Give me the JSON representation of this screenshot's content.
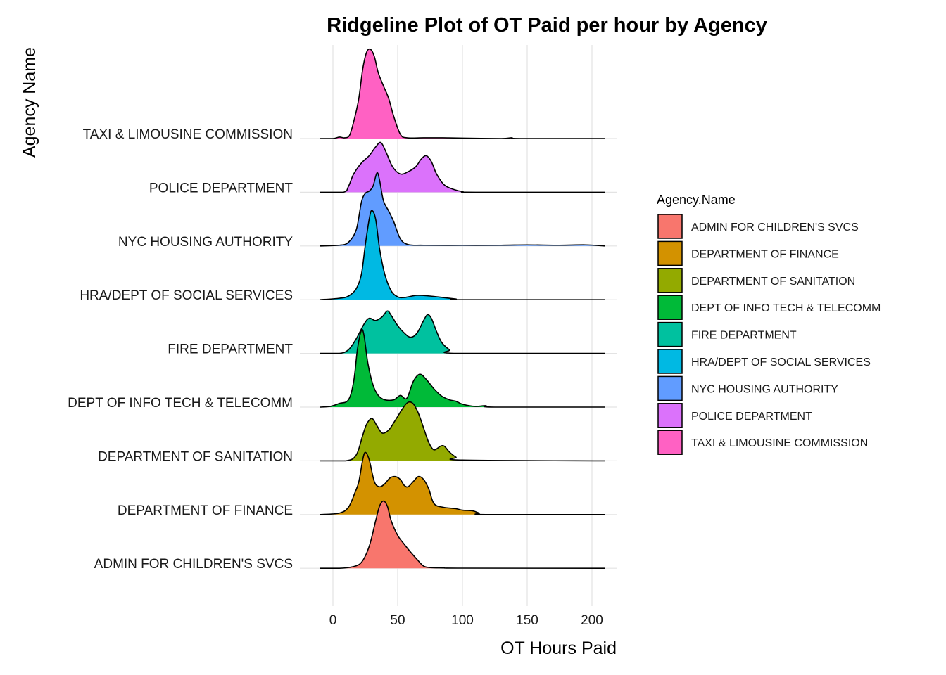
{
  "chart_data": {
    "type": "ridgeline",
    "title": "Ridgeline Plot of OT Paid per hour by Agency",
    "xlabel": "OT Hours Paid",
    "ylabel": "Agency Name",
    "xlim": [
      -10,
      210
    ],
    "xticks": [
      {
        "value": 0,
        "label": "0"
      },
      {
        "value": 50,
        "label": "50"
      },
      {
        "value": 100,
        "label": "100"
      },
      {
        "value": 150,
        "label": "150"
      },
      {
        "value": 200,
        "label": "200"
      }
    ],
    "grid": true,
    "legend": {
      "title": "Agency.Name",
      "position": "right"
    },
    "series": [
      {
        "name": "ADMIN FOR CHILDREN'S SVCS",
        "color": "#F8766D",
        "density": [
          [
            -10,
            0
          ],
          [
            5,
            0
          ],
          [
            15,
            0.02
          ],
          [
            22,
            0.08
          ],
          [
            28,
            0.3
          ],
          [
            33,
            0.65
          ],
          [
            36,
            0.85
          ],
          [
            39,
            0.92
          ],
          [
            42,
            0.85
          ],
          [
            45,
            0.65
          ],
          [
            50,
            0.45
          ],
          [
            55,
            0.33
          ],
          [
            60,
            0.22
          ],
          [
            65,
            0.12
          ],
          [
            70,
            0.03
          ],
          [
            75,
            0.01
          ],
          [
            85,
            0.005
          ],
          [
            100,
            0.002
          ],
          [
            210,
            0
          ]
        ]
      },
      {
        "name": "DEPARTMENT OF FINANCE",
        "color": "#D39200",
        "density": [
          [
            -10,
            0
          ],
          [
            5,
            0.02
          ],
          [
            12,
            0.1
          ],
          [
            17,
            0.3
          ],
          [
            20,
            0.45
          ],
          [
            23,
            0.75
          ],
          [
            25,
            0.85
          ],
          [
            28,
            0.75
          ],
          [
            32,
            0.45
          ],
          [
            36,
            0.38
          ],
          [
            40,
            0.42
          ],
          [
            44,
            0.5
          ],
          [
            48,
            0.52
          ],
          [
            52,
            0.48
          ],
          [
            55,
            0.4
          ],
          [
            58,
            0.38
          ],
          [
            62,
            0.45
          ],
          [
            66,
            0.52
          ],
          [
            70,
            0.48
          ],
          [
            74,
            0.35
          ],
          [
            78,
            0.15
          ],
          [
            85,
            0.1
          ],
          [
            95,
            0.08
          ],
          [
            100,
            0.06
          ],
          [
            108,
            0.05
          ],
          [
            113,
            0.02
          ],
          [
            118,
            0.0
          ],
          [
            210,
            0
          ]
        ]
      },
      {
        "name": "DEPARTMENT OF SANITATION",
        "color": "#93AA00",
        "density": [
          [
            -10,
            0
          ],
          [
            10,
            0
          ],
          [
            18,
            0.08
          ],
          [
            23,
            0.35
          ],
          [
            26,
            0.5
          ],
          [
            30,
            0.58
          ],
          [
            34,
            0.48
          ],
          [
            38,
            0.38
          ],
          [
            43,
            0.42
          ],
          [
            48,
            0.55
          ],
          [
            54,
            0.72
          ],
          [
            58,
            0.8
          ],
          [
            62,
            0.78
          ],
          [
            66,
            0.65
          ],
          [
            70,
            0.45
          ],
          [
            74,
            0.25
          ],
          [
            78,
            0.15
          ],
          [
            83,
            0.2
          ],
          [
            86,
            0.2
          ],
          [
            90,
            0.12
          ],
          [
            95,
            0.05
          ],
          [
            100,
            0.01
          ],
          [
            210,
            0
          ]
        ]
      },
      {
        "name": "DEPT OF INFO TECH & TELECOMM",
        "color": "#00BA38",
        "density": [
          [
            -10,
            0
          ],
          [
            -2,
            0.01
          ],
          [
            5,
            0.05
          ],
          [
            12,
            0.1
          ],
          [
            16,
            0.35
          ],
          [
            19,
            0.8
          ],
          [
            22,
            1.05
          ],
          [
            24,
            0.98
          ],
          [
            27,
            0.6
          ],
          [
            31,
            0.3
          ],
          [
            35,
            0.16
          ],
          [
            40,
            0.1
          ],
          [
            47,
            0.1
          ],
          [
            52,
            0.16
          ],
          [
            57,
            0.12
          ],
          [
            62,
            0.35
          ],
          [
            67,
            0.45
          ],
          [
            72,
            0.38
          ],
          [
            78,
            0.25
          ],
          [
            84,
            0.15
          ],
          [
            90,
            0.1
          ],
          [
            95,
            0.08
          ],
          [
            100,
            0.04
          ],
          [
            110,
            0.01
          ],
          [
            118,
            0.02
          ],
          [
            125,
            0.0
          ],
          [
            210,
            0
          ]
        ]
      },
      {
        "name": "FIRE DEPARTMENT",
        "color": "#00C19F",
        "density": [
          [
            -10,
            0
          ],
          [
            5,
            0
          ],
          [
            12,
            0.05
          ],
          [
            18,
            0.2
          ],
          [
            24,
            0.4
          ],
          [
            28,
            0.48
          ],
          [
            33,
            0.45
          ],
          [
            38,
            0.5
          ],
          [
            42,
            0.58
          ],
          [
            45,
            0.52
          ],
          [
            50,
            0.38
          ],
          [
            55,
            0.28
          ],
          [
            60,
            0.22
          ],
          [
            65,
            0.28
          ],
          [
            70,
            0.45
          ],
          [
            73,
            0.53
          ],
          [
            76,
            0.48
          ],
          [
            80,
            0.3
          ],
          [
            84,
            0.15
          ],
          [
            90,
            0.05
          ],
          [
            96,
            0.0
          ],
          [
            210,
            0
          ]
        ]
      },
      {
        "name": "HRA/DEPT OF SOCIAL SERVICES",
        "color": "#00B9E3",
        "density": [
          [
            -10,
            0
          ],
          [
            5,
            0.02
          ],
          [
            12,
            0.05
          ],
          [
            18,
            0.15
          ],
          [
            22,
            0.35
          ],
          [
            25,
            0.75
          ],
          [
            28,
            1.1
          ],
          [
            30,
            1.22
          ],
          [
            33,
            1.1
          ],
          [
            36,
            0.7
          ],
          [
            40,
            0.35
          ],
          [
            45,
            0.12
          ],
          [
            50,
            0.04
          ],
          [
            55,
            0.03
          ],
          [
            65,
            0.06
          ],
          [
            75,
            0.05
          ],
          [
            85,
            0.03
          ],
          [
            95,
            0.01
          ],
          [
            100,
            0.0
          ],
          [
            210,
            0
          ]
        ]
      },
      {
        "name": "NYC HOUSING AUTHORITY",
        "color": "#619CFF",
        "density": [
          [
            -10,
            0
          ],
          [
            5,
            0.01
          ],
          [
            12,
            0.05
          ],
          [
            18,
            0.22
          ],
          [
            22,
            0.6
          ],
          [
            25,
            0.72
          ],
          [
            28,
            0.75
          ],
          [
            31,
            0.82
          ],
          [
            34,
            1.0
          ],
          [
            36,
            0.9
          ],
          [
            39,
            0.62
          ],
          [
            43,
            0.48
          ],
          [
            47,
            0.33
          ],
          [
            52,
            0.1
          ],
          [
            58,
            0.02
          ],
          [
            70,
            0.01
          ],
          [
            100,
            0.01
          ],
          [
            130,
            0.01
          ],
          [
            150,
            0.015
          ],
          [
            175,
            0.01
          ],
          [
            195,
            0.015
          ],
          [
            210,
            0
          ]
        ]
      },
      {
        "name": "POLICE DEPARTMENT",
        "color": "#DB72FB",
        "density": [
          [
            -10,
            0
          ],
          [
            8,
            0
          ],
          [
            12,
            0.08
          ],
          [
            16,
            0.25
          ],
          [
            22,
            0.4
          ],
          [
            28,
            0.5
          ],
          [
            33,
            0.62
          ],
          [
            37,
            0.68
          ],
          [
            41,
            0.55
          ],
          [
            46,
            0.35
          ],
          [
            52,
            0.25
          ],
          [
            58,
            0.28
          ],
          [
            64,
            0.35
          ],
          [
            68,
            0.45
          ],
          [
            72,
            0.5
          ],
          [
            76,
            0.42
          ],
          [
            80,
            0.25
          ],
          [
            86,
            0.1
          ],
          [
            93,
            0.04
          ],
          [
            100,
            0.01
          ],
          [
            110,
            0.0
          ],
          [
            210,
            0
          ]
        ]
      },
      {
        "name": "TAXI & LIMOUSINE COMMISSION",
        "color": "#FF61C3",
        "density": [
          [
            -10,
            0
          ],
          [
            0,
            0
          ],
          [
            5,
            0.02
          ],
          [
            9,
            0.01
          ],
          [
            13,
            0.05
          ],
          [
            17,
            0.3
          ],
          [
            20,
            0.55
          ],
          [
            23,
            0.95
          ],
          [
            26,
            1.18
          ],
          [
            29,
            1.22
          ],
          [
            32,
            1.12
          ],
          [
            35,
            0.9
          ],
          [
            39,
            0.72
          ],
          [
            43,
            0.55
          ],
          [
            47,
            0.3
          ],
          [
            52,
            0.06
          ],
          [
            57,
            0.01
          ],
          [
            70,
            0.01
          ],
          [
            85,
            0.01
          ],
          [
            100,
            0.005
          ],
          [
            130,
            0.0
          ],
          [
            138,
            0.01
          ],
          [
            145,
            0.0
          ],
          [
            210,
            0
          ]
        ]
      }
    ]
  }
}
